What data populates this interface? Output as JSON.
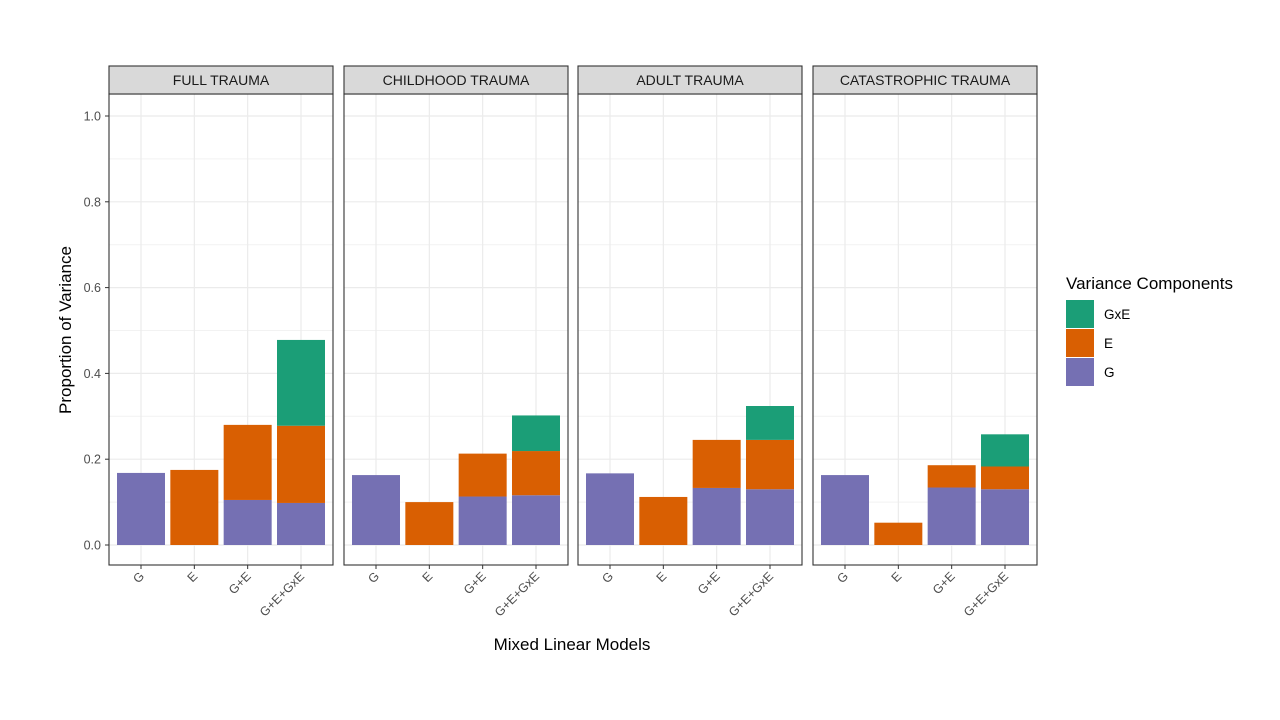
{
  "chart_data": {
    "type": "bar",
    "stacked": true,
    "xlabel": "Mixed Linear Models",
    "ylabel": "Proportion of Variance",
    "ylim": [
      -0.05,
      1.05
    ],
    "yticks": [
      "0.0",
      "0.2",
      "0.4",
      "0.6",
      "0.8",
      "1.0"
    ],
    "grid": true,
    "categories": [
      "G",
      "E",
      "G+E",
      "G+E+GxE"
    ],
    "legend": {
      "title": "Variance Components",
      "position": "right",
      "items": [
        {
          "name": "GxE",
          "color": "#1b9e77"
        },
        {
          "name": "E",
          "color": "#d95f02"
        },
        {
          "name": "G",
          "color": "#7570b3"
        }
      ]
    },
    "panels": [
      {
        "title": "FULL TRAUMA",
        "series": [
          {
            "name": "G",
            "values": [
              0.168,
              0,
              0.105,
              0.098
            ]
          },
          {
            "name": "E",
            "values": [
              0,
              0.175,
              0.175,
              0.18
            ]
          },
          {
            "name": "GxE",
            "values": [
              0,
              0,
              0,
              0.2
            ]
          }
        ]
      },
      {
        "title": "CHILDHOOD TRAUMA",
        "series": [
          {
            "name": "G",
            "values": [
              0.163,
              0,
              0.113,
              0.116
            ]
          },
          {
            "name": "E",
            "values": [
              0,
              0.1,
              0.1,
              0.103
            ]
          },
          {
            "name": "GxE",
            "values": [
              0,
              0,
              0,
              0.083
            ]
          }
        ]
      },
      {
        "title": "ADULT TRAUMA",
        "series": [
          {
            "name": "G",
            "values": [
              0.167,
              0,
              0.133,
              0.13
            ]
          },
          {
            "name": "E",
            "values": [
              0,
              0.112,
              0.112,
              0.115
            ]
          },
          {
            "name": "GxE",
            "values": [
              0,
              0,
              0,
              0.079
            ]
          }
        ]
      },
      {
        "title": "CATASTROPHIC TRAUMA",
        "series": [
          {
            "name": "G",
            "values": [
              0.163,
              0,
              0.134,
              0.13
            ]
          },
          {
            "name": "E",
            "values": [
              0,
              0.052,
              0.052,
              0.053
            ]
          },
          {
            "name": "GxE",
            "values": [
              0,
              0,
              0,
              0.075
            ]
          }
        ]
      }
    ]
  }
}
